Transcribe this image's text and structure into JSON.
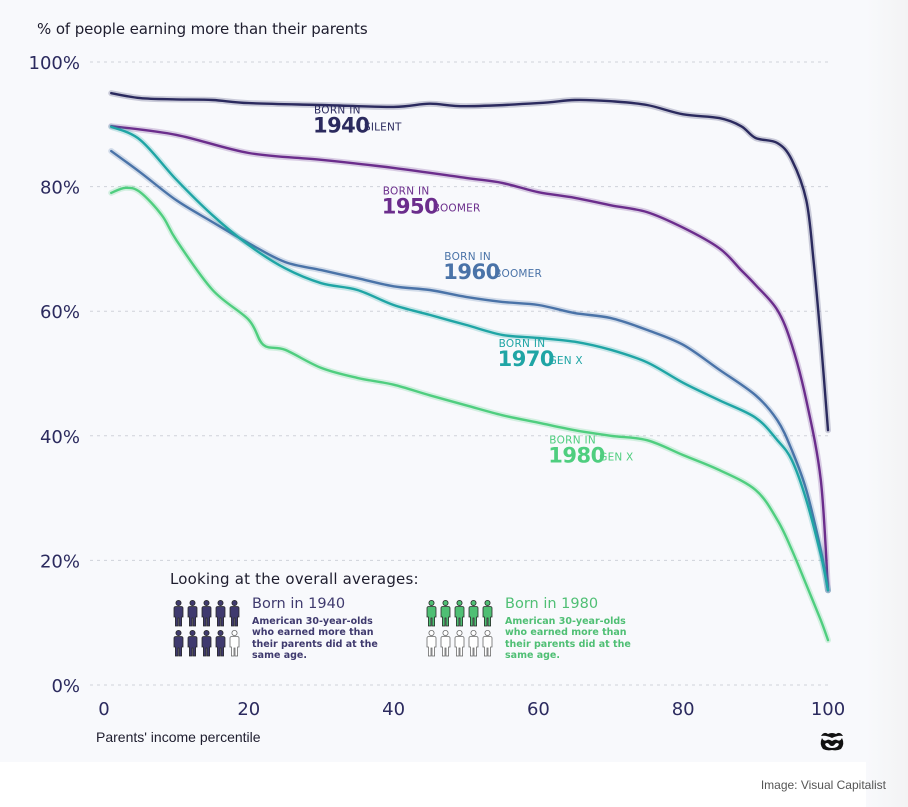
{
  "chart_data": {
    "type": "line",
    "title": "",
    "subtitle": "% of people earning more than their parents",
    "xlabel": "Parents' income percentile",
    "ylabel": "% of people earning more than their parents",
    "xlim": [
      0,
      100
    ],
    "ylim": [
      0,
      100
    ],
    "x_ticks": [
      0,
      20,
      40,
      60,
      80,
      100
    ],
    "x_tick_labels": [
      "0",
      "20",
      "40",
      "60",
      "80",
      "100"
    ],
    "y_ticks": [
      0,
      20,
      40,
      60,
      80,
      100
    ],
    "y_tick_labels": [
      "0%",
      "20%",
      "40%",
      "60%",
      "80%",
      "100%"
    ],
    "grid": "horizontal-dashed",
    "legend": "inline-labels",
    "series": [
      {
        "name": "Born in 1940",
        "key": "1940",
        "color": "#2b2a5e",
        "x": [
          1,
          5,
          10,
          15,
          20,
          30,
          40,
          45,
          50,
          60,
          65,
          70,
          75,
          80,
          85,
          88,
          90,
          93,
          95,
          97,
          98,
          99,
          100
        ],
        "values": [
          95.0,
          94.2,
          94.0,
          93.9,
          93.4,
          93.1,
          92.8,
          93.3,
          92.9,
          93.4,
          93.9,
          93.7,
          93.1,
          91.6,
          91.0,
          89.7,
          87.8,
          87.0,
          84.3,
          77.8,
          68.2,
          55.4,
          40.9
        ]
      },
      {
        "name": "Born in 1950",
        "key": "1950",
        "color": "#6b2d8c",
        "x": [
          1,
          10,
          20,
          30,
          40,
          50,
          55,
          60,
          65,
          70,
          75,
          80,
          85,
          88,
          90,
          93,
          95,
          97,
          99,
          100
        ],
        "values": [
          89.7,
          88.3,
          85.4,
          84.3,
          83.0,
          81.4,
          80.6,
          79.1,
          78.2,
          77.0,
          75.9,
          73.4,
          70.1,
          66.6,
          64.2,
          60.2,
          54.6,
          45.7,
          32.9,
          15.2
        ]
      },
      {
        "name": "Born in 1960",
        "key": "1960",
        "color": "#4a73a8",
        "x": [
          1,
          5,
          10,
          15,
          20,
          25,
          30,
          35,
          40,
          45,
          50,
          55,
          60,
          65,
          70,
          75,
          80,
          85,
          90,
          93,
          95,
          97,
          99,
          100
        ],
        "values": [
          85.7,
          82.3,
          77.8,
          74.3,
          70.9,
          67.9,
          66.6,
          65.3,
          64.0,
          63.4,
          62.3,
          61.5,
          61.0,
          59.7,
          58.9,
          57.0,
          54.6,
          50.6,
          46.5,
          42.5,
          37.7,
          31.3,
          21.7,
          15.2
        ]
      },
      {
        "name": "Born in 1970",
        "key": "1970",
        "color": "#1fa5a5",
        "x": [
          1,
          5,
          10,
          15,
          20,
          25,
          30,
          35,
          40,
          45,
          50,
          55,
          60,
          65,
          70,
          75,
          80,
          85,
          90,
          93,
          95,
          97,
          99,
          100
        ],
        "values": [
          89.6,
          87.5,
          81.1,
          75.4,
          70.6,
          66.9,
          64.5,
          63.4,
          61.0,
          59.4,
          57.8,
          56.2,
          55.7,
          55.1,
          53.8,
          51.8,
          48.5,
          45.7,
          42.9,
          39.3,
          36.1,
          29.7,
          20.9,
          15.2
        ]
      },
      {
        "name": "Born in 1980",
        "key": "1980",
        "color": "#4fce7f",
        "x": [
          1,
          3,
          5,
          8,
          10,
          15,
          20,
          22,
          25,
          30,
          35,
          40,
          45,
          50,
          55,
          60,
          65,
          70,
          75,
          80,
          85,
          90,
          93,
          95,
          97,
          99,
          100
        ],
        "values": [
          79.0,
          79.8,
          79.1,
          75.4,
          71.4,
          63.4,
          58.6,
          54.6,
          53.8,
          50.9,
          49.3,
          48.2,
          46.5,
          44.9,
          43.3,
          42.1,
          40.9,
          40.0,
          39.3,
          36.9,
          34.5,
          31.3,
          26.5,
          21.7,
          16.1,
          10.4,
          7.2
        ]
      }
    ],
    "annotations": [
      {
        "series": "1940",
        "prefix": "BORN IN",
        "year": "1940",
        "generation": "SILENT"
      },
      {
        "series": "1950",
        "prefix": "BORN IN",
        "year": "1950",
        "generation": "BOOMER"
      },
      {
        "series": "1960",
        "prefix": "BORN IN",
        "year": "1960",
        "generation": "BOOMER"
      },
      {
        "series": "1970",
        "prefix": "BORN IN",
        "year": "1970",
        "generation": "GEN X"
      },
      {
        "series": "1980",
        "prefix": "BORN IN",
        "year": "1980",
        "generation": "GEN X"
      }
    ]
  },
  "averages": {
    "title": "Looking at the overall averages:",
    "items": [
      {
        "heading": "Born in 1940",
        "description": "American 30-year-olds who earned more than their parents did at the same age.",
        "filled_of_ten": 9,
        "color": "#3f3a6e"
      },
      {
        "heading": "Born in 1980",
        "description": "American 30-year-olds who earned more than their parents did at the same age.",
        "filled_of_ten": 5,
        "color": "#4fbf74"
      }
    ]
  },
  "icons": {
    "logo": "visual-capitalist-logo-icon",
    "person": "person-icon"
  },
  "credit": "Image: Visual Capitalist"
}
